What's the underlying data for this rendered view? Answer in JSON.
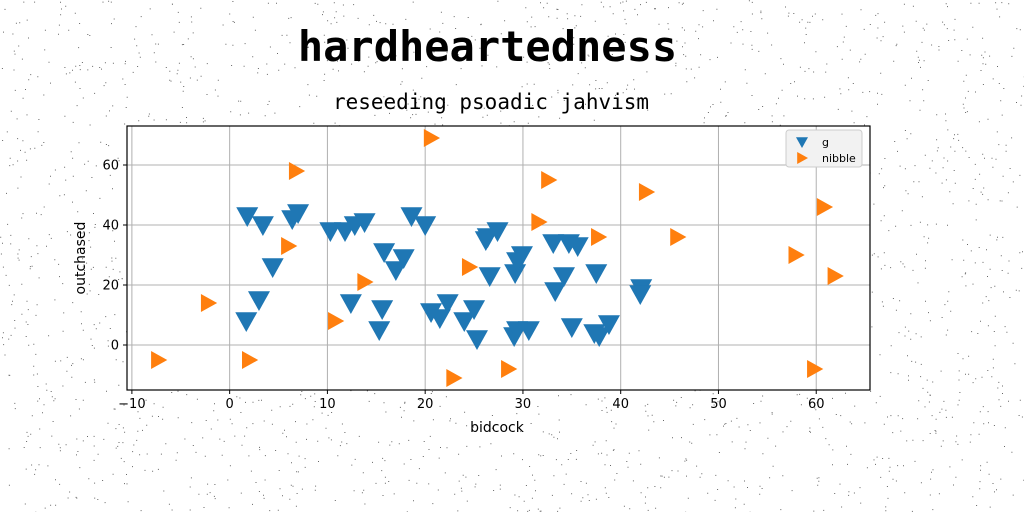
{
  "title": "hardheartedness",
  "subtitle": "reseeding psoadic jahvism",
  "chart_data": {
    "type": "scatter",
    "xlabel": "bidcock",
    "ylabel": "outchased",
    "xlim": [
      -10.5,
      65.5
    ],
    "ylim": [
      -15,
      73
    ],
    "xticks": [
      -10,
      0,
      10,
      20,
      30,
      40,
      50,
      60
    ],
    "yticks": [
      0,
      20,
      40,
      60
    ],
    "grid": true,
    "legend_position": "top-right",
    "series": [
      {
        "name": "g",
        "marker": "triangle-down",
        "color": "#1f77b4",
        "points": [
          [
            1.8,
            43
          ],
          [
            3.4,
            40
          ],
          [
            6.4,
            42
          ],
          [
            7.0,
            44
          ],
          [
            10.3,
            38
          ],
          [
            11.8,
            38
          ],
          [
            12.8,
            40
          ],
          [
            13.8,
            41
          ],
          [
            18.6,
            43
          ],
          [
            20.0,
            40
          ],
          [
            4.4,
            26
          ],
          [
            3.0,
            15
          ],
          [
            1.7,
            8
          ],
          [
            12.4,
            14
          ],
          [
            15.6,
            12
          ],
          [
            15.3,
            5
          ],
          [
            15.8,
            31
          ],
          [
            17.0,
            25
          ],
          [
            17.8,
            29
          ],
          [
            20.6,
            11
          ],
          [
            21.5,
            9
          ],
          [
            22.3,
            14
          ],
          [
            24.0,
            8
          ],
          [
            25.0,
            12
          ],
          [
            25.3,
            2
          ],
          [
            26.2,
            35
          ],
          [
            26.4,
            36
          ],
          [
            27.4,
            38
          ],
          [
            26.6,
            23
          ],
          [
            29.2,
            24
          ],
          [
            29.4,
            28
          ],
          [
            29.9,
            30
          ],
          [
            29.1,
            3
          ],
          [
            29.4,
            5
          ],
          [
            30.6,
            5
          ],
          [
            33.1,
            34
          ],
          [
            34.7,
            34
          ],
          [
            35.6,
            33
          ],
          [
            34.2,
            23
          ],
          [
            33.3,
            18
          ],
          [
            37.5,
            24
          ],
          [
            35.0,
            6
          ],
          [
            37.3,
            4
          ],
          [
            37.8,
            3
          ],
          [
            38.8,
            7
          ],
          [
            42.1,
            19
          ],
          [
            42.0,
            17
          ]
        ]
      },
      {
        "name": "nibble",
        "marker": "triangle-right",
        "color": "#ff7f0e",
        "points": [
          [
            -7.3,
            -5
          ],
          [
            -2.2,
            14
          ],
          [
            2.0,
            -5
          ],
          [
            6.0,
            33
          ],
          [
            6.8,
            58
          ],
          [
            10.8,
            8
          ],
          [
            13.8,
            21
          ],
          [
            20.6,
            69
          ],
          [
            22.9,
            -11
          ],
          [
            24.5,
            26
          ],
          [
            28.5,
            -8
          ],
          [
            31.6,
            41
          ],
          [
            32.6,
            55
          ],
          [
            37.7,
            36
          ],
          [
            42.6,
            51
          ],
          [
            45.8,
            36
          ],
          [
            57.9,
            30
          ],
          [
            59.8,
            -8
          ],
          [
            60.8,
            46
          ],
          [
            61.9,
            23
          ]
        ]
      }
    ]
  }
}
